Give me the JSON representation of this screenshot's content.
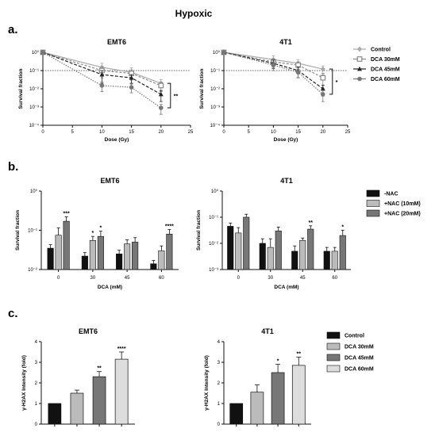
{
  "figure": {
    "main_title": "Hypoxic",
    "panel_a": "a.",
    "panel_b": "b.",
    "panel_c": "c."
  },
  "chart_data": [
    {
      "id": "a_emt6",
      "type": "line",
      "title": "EMT6",
      "xlabel": "Dose (Gy)",
      "ylabel": "Survival fraction",
      "xlim": [
        0,
        25
      ],
      "ylim": [
        0.0001,
        1
      ],
      "yscale": "log",
      "xticks": [
        "0",
        "5",
        "10",
        "15",
        "20",
        "25"
      ],
      "yticks": [
        "10⁰",
        "10⁻¹",
        "10⁻²",
        "10⁻³",
        "10⁻⁴"
      ],
      "reference_line": 0.1,
      "grid": false,
      "x": [
        0,
        10,
        15,
        20
      ],
      "series": [
        {
          "name": "Control",
          "values": [
            1,
            0.15,
            0.08,
            0.02
          ],
          "err": [
            0.1,
            0.1,
            0.06,
            0.012
          ],
          "color": "#aaaaaa",
          "marker": "diamond"
        },
        {
          "name": "DCA 30mM",
          "values": [
            1,
            0.1,
            0.07,
            0.015
          ],
          "err": [
            0.1,
            0.06,
            0.04,
            0.008
          ],
          "color": "#888888",
          "marker": "square"
        },
        {
          "name": "DCA 45mM",
          "values": [
            1,
            0.06,
            0.04,
            0.005
          ],
          "err": [
            0.1,
            0.04,
            0.02,
            0.003
          ],
          "color": "#222222",
          "marker": "triangle"
        },
        {
          "name": "DCA 60mM",
          "values": [
            1,
            0.015,
            0.012,
            0.0009
          ],
          "err": [
            0.1,
            0.008,
            0.006,
            0.0005
          ],
          "color": "#777777",
          "marker": "circle"
        }
      ],
      "annotations": [
        "**"
      ]
    },
    {
      "id": "a_4t1",
      "type": "line",
      "title": "4T1",
      "xlabel": "Dose (Gy)",
      "ylabel": "Survival fraction",
      "xlim": [
        0,
        25
      ],
      "ylim": [
        0.0001,
        1
      ],
      "yscale": "log",
      "xticks": [
        "0",
        "5",
        "10",
        "15",
        "20",
        "25"
      ],
      "yticks": [
        "10⁰",
        "10⁻¹",
        "10⁻²",
        "10⁻³",
        "10⁻⁴"
      ],
      "reference_line": 0.1,
      "grid": false,
      "x": [
        0,
        10,
        15,
        20
      ],
      "series": [
        {
          "name": "Control",
          "values": [
            1,
            0.4,
            0.25,
            0.12
          ],
          "err": [
            0.1,
            0.25,
            0.15,
            0.06
          ],
          "color": "#aaaaaa",
          "marker": "diamond"
        },
        {
          "name": "DCA 30mM",
          "values": [
            1,
            0.3,
            0.2,
            0.04
          ],
          "err": [
            0.1,
            0.15,
            0.1,
            0.03
          ],
          "color": "#888888",
          "marker": "square"
        },
        {
          "name": "DCA 45mM",
          "values": [
            1,
            0.25,
            0.1,
            0.01
          ],
          "err": [
            0.1,
            0.12,
            0.06,
            0.006
          ],
          "color": "#222222",
          "marker": "triangle"
        },
        {
          "name": "DCA 60mM",
          "values": [
            1,
            0.2,
            0.08,
            0.005
          ],
          "err": [
            0.1,
            0.1,
            0.04,
            0.003
          ],
          "color": "#777777",
          "marker": "circle"
        }
      ],
      "annotations": [
        "*"
      ]
    },
    {
      "id": "b_emt6",
      "type": "bar",
      "title": "EMT6",
      "xlabel": "DCA (mM)",
      "ylabel": "Survival fraction",
      "yscale": "log",
      "ylim": [
        0.01,
        1
      ],
      "yticks": [
        "10⁰",
        "10⁻¹",
        "10⁻²"
      ],
      "categories": [
        "0",
        "30",
        "45",
        "60"
      ],
      "series": [
        {
          "name": "-NAC",
          "values": [
            0.035,
            0.022,
            0.025,
            0.014
          ],
          "err": [
            0.008,
            0.005,
            0.006,
            0.003
          ],
          "color": "#111111"
        },
        {
          "name": "+NAC (10mM)",
          "values": [
            0.075,
            0.055,
            0.045,
            0.03
          ],
          "err": [
            0.04,
            0.015,
            0.012,
            0.01
          ],
          "color": "#bbbbbb"
        },
        {
          "name": "+NAC (20mM)",
          "values": [
            0.17,
            0.07,
            0.05,
            0.08
          ],
          "err": [
            0.05,
            0.025,
            0.015,
            0.025
          ],
          "color": "#777777"
        }
      ],
      "significance": [
        {
          "category": "0",
          "series": "+NAC (20mM)",
          "label": "***"
        },
        {
          "category": "30",
          "series": "+NAC (10mM)",
          "label": "*"
        },
        {
          "category": "30",
          "series": "+NAC (20mM)",
          "label": "*"
        },
        {
          "category": "60",
          "series": "+NAC (20mM)",
          "label": "****"
        }
      ]
    },
    {
      "id": "b_4t1",
      "type": "bar",
      "title": "4T1",
      "xlabel": "DCA (mM)",
      "ylabel": "Survival fraction",
      "yscale": "log",
      "ylim": [
        0.001,
        1
      ],
      "yticks": [
        "10⁰",
        "10⁻¹",
        "10⁻²",
        "10⁻³"
      ],
      "categories": [
        "0",
        "30",
        "45",
        "60"
      ],
      "series": [
        {
          "name": "-NAC",
          "values": [
            0.045,
            0.01,
            0.005,
            0.005
          ],
          "err": [
            0.015,
            0.005,
            0.003,
            0.002
          ],
          "color": "#111111"
        },
        {
          "name": "+NAC (10mM)",
          "values": [
            0.025,
            0.007,
            0.013,
            0.005
          ],
          "err": [
            0.015,
            0.008,
            0.003,
            0.002
          ],
          "color": "#bbbbbb"
        },
        {
          "name": "+NAC (20mM)",
          "values": [
            0.1,
            0.03,
            0.035,
            0.02
          ],
          "err": [
            0.03,
            0.012,
            0.012,
            0.012
          ],
          "color": "#777777"
        }
      ],
      "significance": [
        {
          "category": "45",
          "series": "+NAC (20mM)",
          "label": "**"
        },
        {
          "category": "60",
          "series": "+NAC (20mM)",
          "label": "*"
        }
      ]
    },
    {
      "id": "c_emt6",
      "type": "bar",
      "title": "EMT6",
      "ylabel": "γ-H2AX Intensity (fold)",
      "ylim": [
        0,
        4
      ],
      "yticks": [
        "0",
        "1",
        "2",
        "3",
        "4"
      ],
      "categories": [
        "Control",
        "DCA 30mM",
        "DCA 45mM",
        "DCA 60mM"
      ],
      "values": [
        1.0,
        1.5,
        2.3,
        3.15
      ],
      "err": [
        0,
        0.15,
        0.25,
        0.35
      ],
      "colors": [
        "#111111",
        "#bbbbbb",
        "#777777",
        "#dddddd"
      ],
      "significance": [
        "",
        "",
        "**",
        "****"
      ]
    },
    {
      "id": "c_4t1",
      "type": "bar",
      "title": "4T1",
      "ylabel": "γ-H2AX Intensity (fold)",
      "ylim": [
        0,
        4
      ],
      "yticks": [
        "0",
        "1",
        "2",
        "3",
        "4"
      ],
      "categories": [
        "Control",
        "DCA 30mM",
        "DCA 45mM",
        "DCA 60mM"
      ],
      "values": [
        1.0,
        1.55,
        2.5,
        2.85
      ],
      "err": [
        0,
        0.35,
        0.4,
        0.4
      ],
      "colors": [
        "#111111",
        "#bbbbbb",
        "#777777",
        "#dddddd"
      ],
      "significance": [
        "",
        "",
        "*",
        "**"
      ]
    }
  ],
  "legends": {
    "a": [
      {
        "label": "Control",
        "color": "#aaaaaa",
        "marker": "diamond"
      },
      {
        "label": "DCA 30mM",
        "color": "#888888",
        "marker": "square"
      },
      {
        "label": "DCA 45mM",
        "color": "#222222",
        "marker": "triangle"
      },
      {
        "label": "DCA 60mM",
        "color": "#777777",
        "marker": "circle"
      }
    ],
    "b": [
      {
        "label": "-NAC",
        "color": "#111111"
      },
      {
        "label": "+NAC (10mM)",
        "color": "#bbbbbb"
      },
      {
        "label": "+NAC (20mM)",
        "color": "#777777"
      }
    ],
    "c": [
      {
        "label": "Control",
        "color": "#111111"
      },
      {
        "label": "DCA 30mM",
        "color": "#bbbbbb"
      },
      {
        "label": "DCA 45mM",
        "color": "#777777"
      },
      {
        "label": "DCA 60mM",
        "color": "#dddddd"
      }
    ]
  }
}
